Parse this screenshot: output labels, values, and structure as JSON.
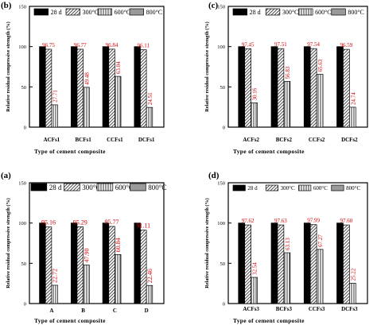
{
  "colors": {
    "age_28d": "#000000",
    "hatch_300": "#555555",
    "hatch_600": "#444444",
    "fill_800": "#9a9a9a",
    "annotation": "#d40000"
  },
  "legend_labels": [
    "28 d",
    "300°C",
    "600°C",
    "800°C"
  ],
  "chart_data": [
    {
      "type": "bar",
      "panel_label": "(b)",
      "legend_position": "top",
      "ylabel": "Relative residual compressive strength (%)",
      "xlabel": "Type of cement composite",
      "ylim": [
        0,
        150
      ],
      "yticks": [
        "0",
        "50",
        "100",
        "150"
      ],
      "categories": [
        "ACFs1",
        "BCFs1",
        "CCFs1",
        "DCFs1"
      ],
      "series": [
        {
          "name": "28 d",
          "values": [
            100,
            100,
            100,
            100
          ]
        },
        {
          "name": "300°C",
          "values": [
            96.75,
            96.77,
            96.84,
            96.11
          ],
          "labels": [
            "96.75",
            "96.77",
            "96.84",
            "96.11"
          ]
        },
        {
          "name": "600°C",
          "values": [
            27.71,
            49.48,
            63.04,
            24.51
          ],
          "labels": [
            "27.71",
            "49.48",
            "63.04",
            "24.51"
          ]
        },
        {
          "name": "800°C",
          "values": [
            0,
            0,
            0,
            0
          ]
        }
      ]
    },
    {
      "type": "bar",
      "panel_label": "(c)",
      "legend_position": "top",
      "ylabel": "Relative residual compressive strength (%)",
      "xlabel": "Type of cement composite",
      "ylim": [
        0,
        150
      ],
      "yticks": [
        "0",
        "50",
        "100",
        "150"
      ],
      "categories": [
        "ACFs2",
        "BCFs2",
        "CCFs2",
        "DCFs2"
      ],
      "series": [
        {
          "name": "28 d",
          "values": [
            100,
            100,
            100,
            100
          ]
        },
        {
          "name": "300°C",
          "values": [
            97.45,
            97.51,
            97.54,
            96.59
          ],
          "labels": [
            "97.45",
            "97.51",
            "97.54",
            "96.59"
          ]
        },
        {
          "name": "600°C",
          "values": [
            30.16,
            56.83,
            65.63,
            24.74
          ],
          "labels": [
            "30.16",
            "56.83",
            "65.63",
            "24.74"
          ]
        },
        {
          "name": "800°C",
          "values": [
            0,
            0,
            0,
            0
          ]
        }
      ]
    },
    {
      "type": "bar",
      "panel_label": "(a)",
      "legend_position": "top",
      "ylabel": "Relative residual compressive strength (%)",
      "xlabel": "Type of cement composite",
      "ylim": [
        0,
        150
      ],
      "yticks": [
        "0",
        "50",
        "100",
        "150"
      ],
      "categories": [
        "A",
        "B",
        "C",
        "D"
      ],
      "series": [
        {
          "name": "28 d",
          "values": [
            100,
            100,
            100,
            100
          ]
        },
        {
          "name": "300°C",
          "values": [
            95.16,
            95.29,
            95.77,
            91.11
          ],
          "labels": [
            "95.16",
            "95.29",
            "95.77",
            "91.11"
          ]
        },
        {
          "name": "600°C",
          "values": [
            22.72,
            47.9,
            60.84,
            22.46
          ],
          "labels": [
            "22.72",
            "47.90",
            "60.84",
            "22.46"
          ]
        },
        {
          "name": "800°C",
          "values": [
            0,
            0,
            0,
            0
          ]
        }
      ]
    },
    {
      "type": "bar",
      "panel_label": "(d)",
      "legend_position": "top",
      "ylabel": "Relative residual compressive strength (%)",
      "xlabel": "Type of cement composite",
      "ylim": [
        0,
        150
      ],
      "yticks": [
        "0",
        "50",
        "100",
        "150"
      ],
      "categories": [
        "ACFs3",
        "BCFs3",
        "CCFs3",
        "DCFs3"
      ],
      "series": [
        {
          "name": "28 d",
          "values": [
            100,
            100,
            100,
            100
          ]
        },
        {
          "name": "300°C",
          "values": [
            97.62,
            97.63,
            97.99,
            97.6
          ],
          "labels": [
            "97.62",
            "97.63",
            "97.99",
            "97.60"
          ]
        },
        {
          "name": "600°C",
          "values": [
            32.54,
            63.13,
            67.27,
            25.22
          ],
          "labels": [
            "32.54",
            "63.13",
            "67.27",
            "25.22"
          ]
        },
        {
          "name": "800°C",
          "values": [
            0,
            0,
            0,
            0
          ]
        }
      ]
    }
  ]
}
